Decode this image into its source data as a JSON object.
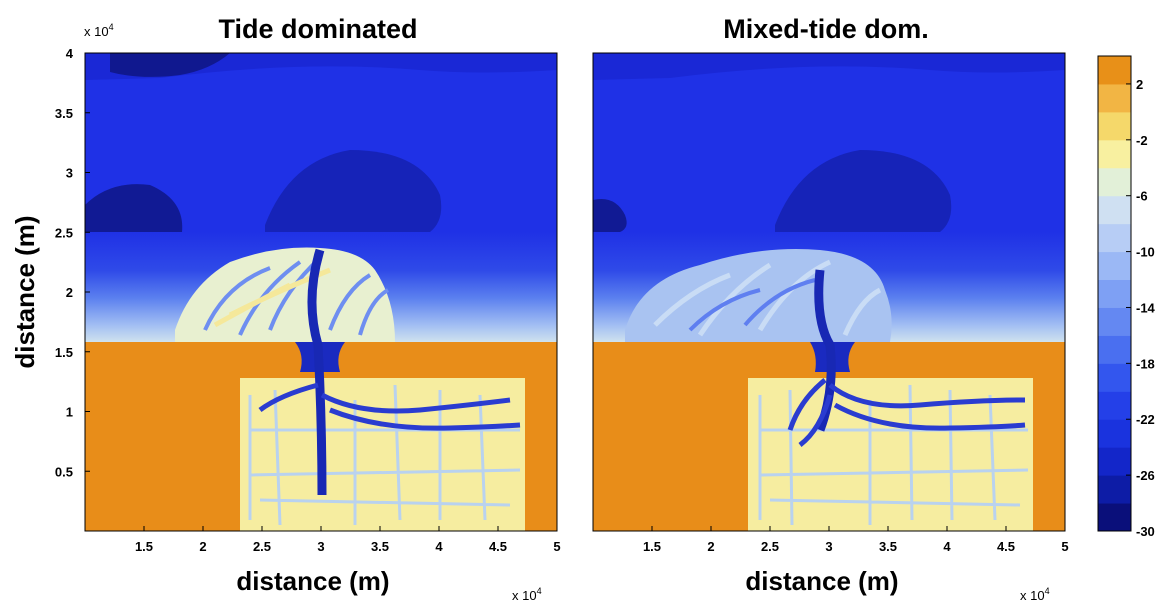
{
  "chart_data": [
    {
      "type": "heatmap",
      "title": "Tide dominated",
      "xlabel": "distance (m)",
      "ylabel": "distance (m)",
      "x_multiplier_label": "x 10",
      "x_multiplier_exp": "4",
      "y_multiplier_label": "x 10",
      "y_multiplier_exp": "4",
      "xlim": [
        1,
        5
      ],
      "ylim": [
        0,
        4
      ],
      "xticks": [
        1.5,
        2,
        2.5,
        3,
        3.5,
        4,
        4.5,
        5
      ],
      "xtick_labels": [
        "1.5",
        "2",
        "2.5",
        "3",
        "3.5",
        "4",
        "4.5",
        "5"
      ],
      "yticks": [
        0.5,
        1,
        1.5,
        2,
        2.5,
        3,
        3.5,
        4
      ],
      "ytick_labels": [
        "0.5",
        "1",
        "1.5",
        "2",
        "2.5",
        "3",
        "3.5",
        "4"
      ],
      "description_values": {
        "offshore_depth": -22,
        "deep_scour": -28,
        "land_elevation": 3,
        "basin_elevation": -1,
        "shoreline_y": 1.6,
        "basin_x": [
          2.35,
          4.75
        ],
        "basin_y_top": 1.3,
        "inlet_x": 3.0
      }
    },
    {
      "type": "heatmap",
      "title": "Mixed-tide dom.",
      "xlabel": "distance (m)",
      "ylabel": "",
      "x_multiplier_label": "x 10",
      "x_multiplier_exp": "4",
      "xlim": [
        1,
        5
      ],
      "ylim": [
        0,
        4
      ],
      "xticks": [
        1.5,
        2,
        2.5,
        3,
        3.5,
        4,
        4.5,
        5
      ],
      "xtick_labels": [
        "1.5",
        "2",
        "2.5",
        "3",
        "3.5",
        "4",
        "4.5",
        "5"
      ],
      "description_values": {
        "offshore_depth": -22,
        "deep_scour": -28,
        "land_elevation": 3,
        "basin_elevation": -1,
        "shoreline_y": 1.6,
        "basin_x": [
          2.35,
          4.75
        ],
        "basin_y_top": 1.3,
        "inlet_x": 3.0
      }
    }
  ],
  "colorbar": {
    "range": [
      -30,
      4
    ],
    "tick_values": [
      2,
      -2,
      -6,
      -10,
      -14,
      -18,
      -22,
      -26,
      -30
    ],
    "tick_labels": [
      "2",
      "-2",
      "-6",
      "-10",
      "-14",
      "-18",
      "-22",
      "-26",
      "-30"
    ],
    "colors": [
      "#0a0f7a",
      "#0d1ca6",
      "#1326c9",
      "#1a33de",
      "#2440e8",
      "#3356ee",
      "#4a6ff0",
      "#6488f2",
      "#7ea0f4",
      "#9bb8f5",
      "#b7cdf5",
      "#cfe0f2",
      "#e2f0d8",
      "#f8f0a0",
      "#f5d86a",
      "#f2b544",
      "#e89018"
    ]
  },
  "palette": {
    "land": "#e88d19",
    "basin": "#f6eda0",
    "offshore": "#1f31e6",
    "deep": "#0b137f",
    "channel": "#1a2ac0",
    "shoal": "#c9dcf5"
  }
}
